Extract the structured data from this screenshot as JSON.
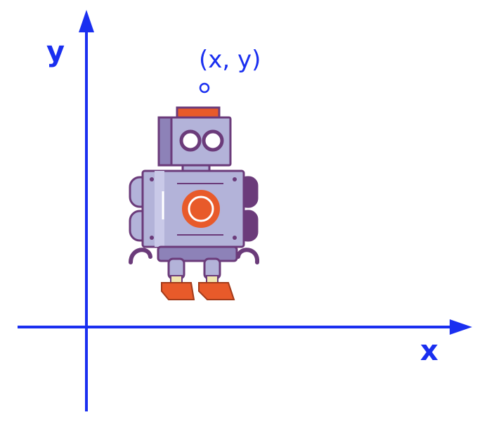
{
  "axes": {
    "x_label": "x",
    "y_label": "y",
    "color": "#1a2ff0"
  },
  "point": {
    "label": "(x, y)",
    "marker": "hollow-circle",
    "color": "#1a2ff0"
  },
  "robot": {
    "icon": "robot-icon",
    "colors": {
      "body": "#b3b3d9",
      "body_shade": "#8d82b8",
      "outline": "#6b3b7a",
      "accent": "#e85a2a",
      "eye": "#ffffff"
    }
  }
}
